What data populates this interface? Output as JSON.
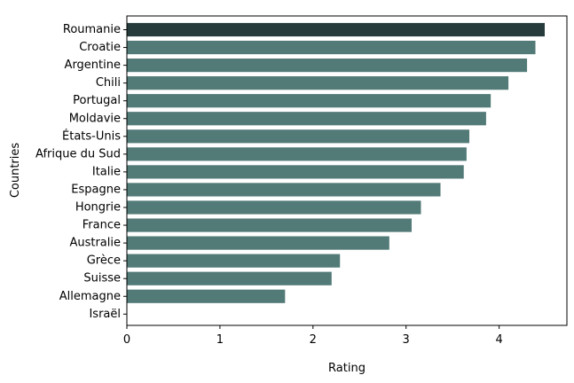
{
  "chart_data": {
    "type": "bar",
    "orientation": "horizontal",
    "categories": [
      "Roumanie",
      "Croatie",
      "Argentine",
      "Chili",
      "Portugal",
      "Moldavie",
      "États-Unis",
      "Afrique du Sud",
      "Italie",
      "Espagne",
      "Hongrie",
      "France",
      "Australie",
      "Grèce",
      "Suisse",
      "Allemagne",
      "Israël"
    ],
    "values": [
      4.49,
      4.39,
      4.3,
      4.1,
      3.91,
      3.86,
      3.68,
      3.65,
      3.62,
      3.37,
      3.16,
      3.06,
      2.82,
      2.29,
      2.2,
      1.7,
      0
    ],
    "xlabel": "Rating",
    "ylabel": "Countries",
    "xlim": [
      0,
      4.7
    ],
    "xticks": [
      "0",
      "1",
      "2",
      "3",
      "4"
    ],
    "grid": false,
    "colors": {
      "highlight": "#263c3c",
      "bar": "#527a77"
    }
  }
}
